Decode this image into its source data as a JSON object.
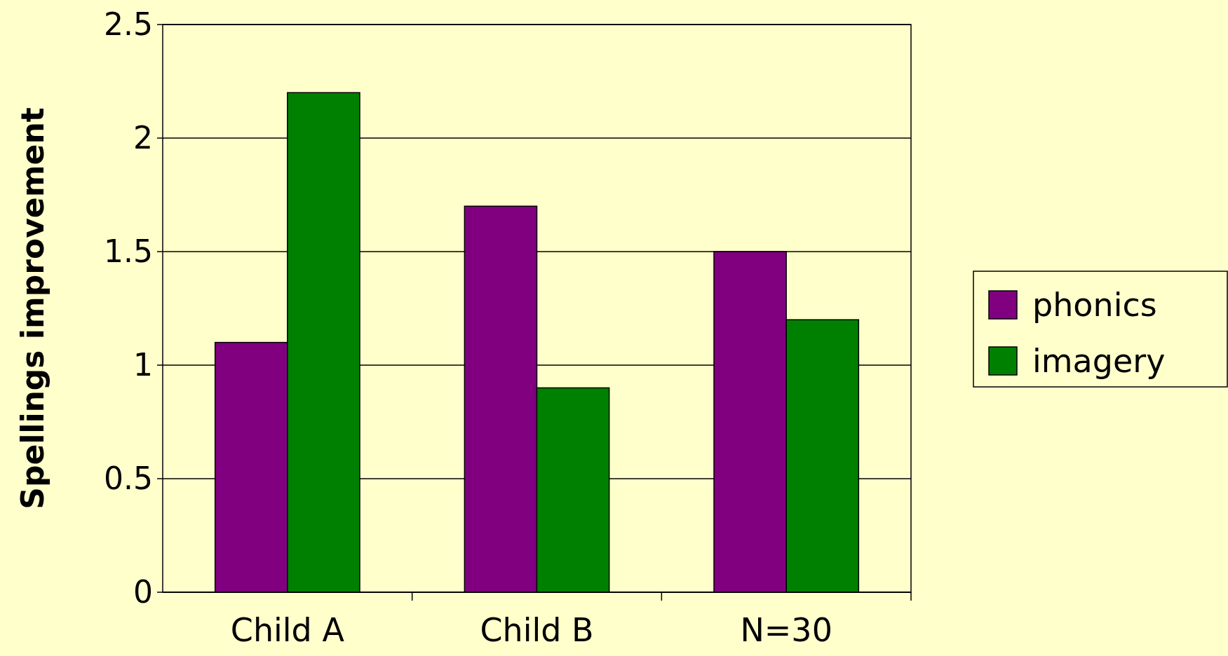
{
  "chart_data": {
    "type": "bar",
    "ylabel": "Spellings improvement",
    "categories": [
      "Child A",
      "Child B",
      "N=30"
    ],
    "series": [
      {
        "name": "phonics",
        "color": "#800080",
        "values": [
          1.1,
          1.7,
          1.5
        ]
      },
      {
        "name": "imagery",
        "color": "#008000",
        "values": [
          2.2,
          0.9,
          1.2
        ]
      }
    ],
    "ylim": [
      0,
      2.5
    ],
    "yticks": [
      0,
      0.5,
      1,
      1.5,
      2,
      2.5
    ],
    "grid": "y",
    "legend": "right"
  }
}
